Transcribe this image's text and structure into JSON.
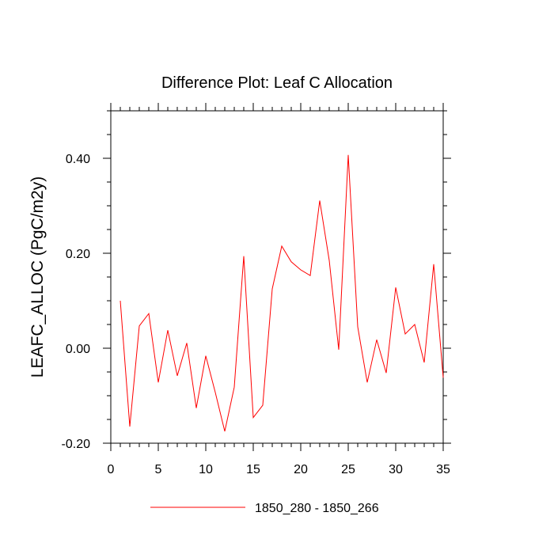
{
  "chart_data": {
    "type": "line",
    "title": "Difference Plot: Leaf C Allocation",
    "xlabel": "",
    "ylabel": "LEAFC_ALLOC  (PgC/m2y)",
    "xlim": [
      0,
      35
    ],
    "ylim": [
      -0.2,
      0.5
    ],
    "x_ticks": [
      0,
      5,
      10,
      15,
      20,
      25,
      30,
      35
    ],
    "x_tick_labels": [
      "0",
      "5",
      "10",
      "15",
      "20",
      "25",
      "30",
      "35"
    ],
    "y_ticks": [
      -0.2,
      0.0,
      0.2,
      0.4
    ],
    "y_tick_labels": [
      "-0.20",
      "0.00",
      "0.20",
      "0.40"
    ],
    "grid": false,
    "legend_position": "bottom-center",
    "series": [
      {
        "name": "1850_280 - 1850_266",
        "color": "#ff0000",
        "x": [
          1,
          2,
          3,
          4,
          5,
          6,
          7,
          8,
          9,
          10,
          11,
          12,
          13,
          14,
          15,
          16,
          17,
          18,
          19,
          20,
          21,
          22,
          23,
          24,
          25,
          26,
          27,
          28,
          29,
          30,
          31,
          32,
          33,
          34,
          35
        ],
        "values": [
          0.1,
          -0.165,
          0.047,
          0.073,
          -0.072,
          0.038,
          -0.058,
          0.011,
          -0.126,
          -0.016,
          -0.093,
          -0.175,
          -0.082,
          0.194,
          -0.146,
          -0.12,
          0.125,
          0.215,
          0.182,
          0.165,
          0.153,
          0.311,
          0.185,
          -0.003,
          0.407,
          0.045,
          -0.072,
          0.018,
          -0.052,
          0.128,
          0.03,
          0.05,
          -0.03,
          0.177,
          -0.062
        ]
      }
    ]
  }
}
